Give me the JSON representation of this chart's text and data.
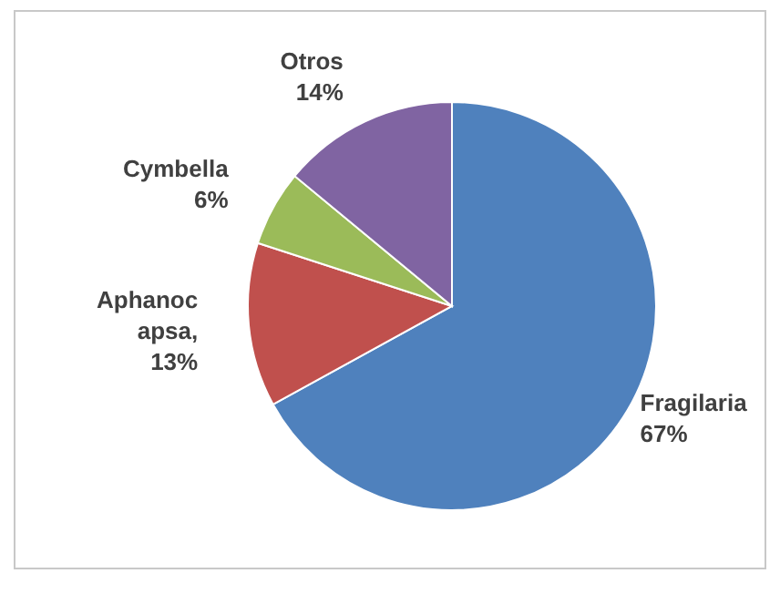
{
  "chart_data": {
    "type": "pie",
    "categories": [
      "Fragilaria",
      "Aphanocapsa",
      "Cymbella",
      "Otros"
    ],
    "values": [
      67,
      13,
      6,
      14
    ],
    "colors": [
      "#4f81bd",
      "#c0504d",
      "#9bbb59",
      "#8064a2"
    ],
    "value_labels": [
      "67%",
      ", 13%",
      "6%",
      "14%"
    ]
  }
}
